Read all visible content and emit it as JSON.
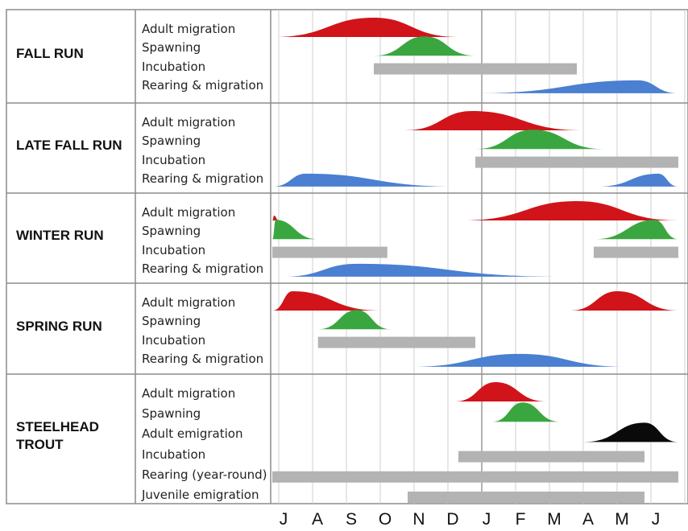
{
  "chart_data": {
    "type": "timeline",
    "months": [
      "J",
      "A",
      "S",
      "O",
      "N",
      "D",
      "J",
      "F",
      "M",
      "A",
      "M",
      "J"
    ],
    "colors": {
      "adult_migration": "#d0141a",
      "spawning": "#3aa640",
      "incubation": "#b3b3b3",
      "rearing": "#4a7fd1",
      "adult_emigration": "#0a0a0a"
    },
    "runs": [
      {
        "name": "FALL RUN",
        "stages": [
          {
            "label": "Adult migration",
            "kind": "hump",
            "color": "#d0141a",
            "start": 0.0,
            "peak": 3.0,
            "end": 5.5
          },
          {
            "label": "Spawning",
            "kind": "hump",
            "color": "#3aa640",
            "start": 3.0,
            "peak": 4.5,
            "end": 6.0
          },
          {
            "label": "Incubation",
            "kind": "bar",
            "color": "#b3b3b3",
            "start": 3.0,
            "end": 9.0
          },
          {
            "label": "Rearing & migration",
            "kind": "blue",
            "color": "#4a7fd1",
            "start": 6.0,
            "peak": 10.8,
            "end": 12.0
          }
        ]
      },
      {
        "name": "LATE FALL RUN",
        "stages": [
          {
            "label": "Adult migration",
            "kind": "hump",
            "color": "#d0141a",
            "start": 3.9,
            "peak": 5.9,
            "end": 9.2
          },
          {
            "label": "Spawning",
            "kind": "hump",
            "color": "#3aa640",
            "start": 6.0,
            "peak": 7.7,
            "end": 9.8
          },
          {
            "label": "Incubation",
            "kind": "bar",
            "color": "#b3b3b3",
            "start": 6.0,
            "end": 12.0
          },
          {
            "label": "Rearing & migration",
            "kind": "blue",
            "color": "#4a7fd1",
            "start": 0.0,
            "peak": 1.0,
            "end": 5.5,
            "start2": 9.6,
            "peak2": 11.4,
            "end2": 12.0
          }
        ]
      },
      {
        "name": "WINTER RUN",
        "stages": [
          {
            "label": "Adult migration",
            "kind": "hump",
            "color": "#d0141a",
            "start": 5.6,
            "peak": 9.0,
            "end": 12.0,
            "start2": 0.0,
            "peak2": 0.05,
            "end2": 0.2
          },
          {
            "label": "Spawning",
            "kind": "hump",
            "color": "#3aa640",
            "start": 9.5,
            "peak": 11.3,
            "end": 12.0,
            "start2": 0.0,
            "peak2": 0.1,
            "end2": 1.35
          },
          {
            "label": "Incubation",
            "kind": "bar",
            "color": "#b3b3b3",
            "start": 9.5,
            "end": 12.0,
            "start2": 0.0,
            "end2": 3.4
          },
          {
            "label": "Rearing & migration",
            "kind": "blue",
            "color": "#4a7fd1",
            "start": 0.3,
            "peak": 2.5,
            "end": 8.6
          }
        ]
      },
      {
        "name": "SPRING RUN",
        "stages": [
          {
            "label": "Adult migration",
            "kind": "hump",
            "color": "#d0141a",
            "start": 0.0,
            "peak": 0.6,
            "end": 3.2,
            "start2": 8.8,
            "peak2": 10.2,
            "end2": 12.0
          },
          {
            "label": "Spawning",
            "kind": "hump",
            "color": "#3aa640",
            "start": 1.35,
            "peak": 2.5,
            "end": 3.5
          },
          {
            "label": "Incubation",
            "kind": "bar",
            "color": "#b3b3b3",
            "start": 1.35,
            "end": 6.0
          },
          {
            "label": "Rearing & migration",
            "kind": "blue",
            "color": "#4a7fd1",
            "start": 4.1,
            "peak": 7.3,
            "end": 10.5
          }
        ]
      },
      {
        "name": "STEELHEAD TROUT",
        "stages": [
          {
            "label": "Adult migration",
            "kind": "hump",
            "color": "#d0141a",
            "start": 5.4,
            "peak": 6.6,
            "end": 8.1
          },
          {
            "label": "Spawning",
            "kind": "hump",
            "color": "#3aa640",
            "start": 6.5,
            "peak": 7.4,
            "end": 8.5
          },
          {
            "label": "Adult emigration",
            "kind": "hump",
            "color": "#0a0a0a",
            "start": 9.2,
            "peak": 11.0,
            "end": 12.0
          },
          {
            "label": "Incubation",
            "kind": "bar",
            "color": "#b3b3b3",
            "start": 5.5,
            "end": 11.0
          },
          {
            "label": "Rearing (year-round)",
            "kind": "bar",
            "color": "#b3b3b3",
            "start": 0.0,
            "end": 12.0
          },
          {
            "label": "Juvenile emigration",
            "kind": "bar",
            "color": "#b3b3b3",
            "start": 4.0,
            "end": 11.0
          }
        ]
      }
    ]
  }
}
